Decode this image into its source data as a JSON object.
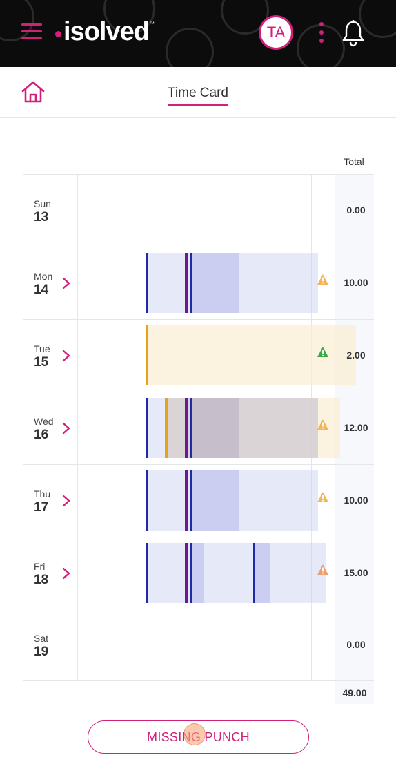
{
  "header": {
    "brand": "isolved",
    "brand_tm": "™",
    "avatar_initials": "TA"
  },
  "page": {
    "title": "Time Card"
  },
  "table": {
    "total_header": "Total",
    "rows": [
      {
        "day": "Sun",
        "date": "13",
        "total": "0.00",
        "has_detail": false,
        "warning": null
      },
      {
        "day": "Mon",
        "date": "14",
        "total": "10.00",
        "has_detail": true,
        "warning": "orange"
      },
      {
        "day": "Tue",
        "date": "15",
        "total": "2.00",
        "has_detail": true,
        "warning": "green"
      },
      {
        "day": "Wed",
        "date": "16",
        "total": "12.00",
        "has_detail": true,
        "warning": "orange"
      },
      {
        "day": "Thu",
        "date": "17",
        "total": "10.00",
        "has_detail": true,
        "warning": "orange"
      },
      {
        "day": "Fri",
        "date": "18",
        "total": "15.00",
        "has_detail": true,
        "warning": "orange"
      },
      {
        "day": "Sat",
        "date": "19",
        "total": "0.00",
        "has_detail": false,
        "warning": null
      }
    ],
    "grand_total": "49.00"
  },
  "actions": {
    "missing_punch_label": "MISSING PUNCH"
  },
  "colors": {
    "accent": "#d1207a",
    "punch_blue": "#1f2aa6",
    "punch_amber": "#e5a31a",
    "warn_orange": "#f4a640",
    "warn_green": "#3aa843"
  }
}
